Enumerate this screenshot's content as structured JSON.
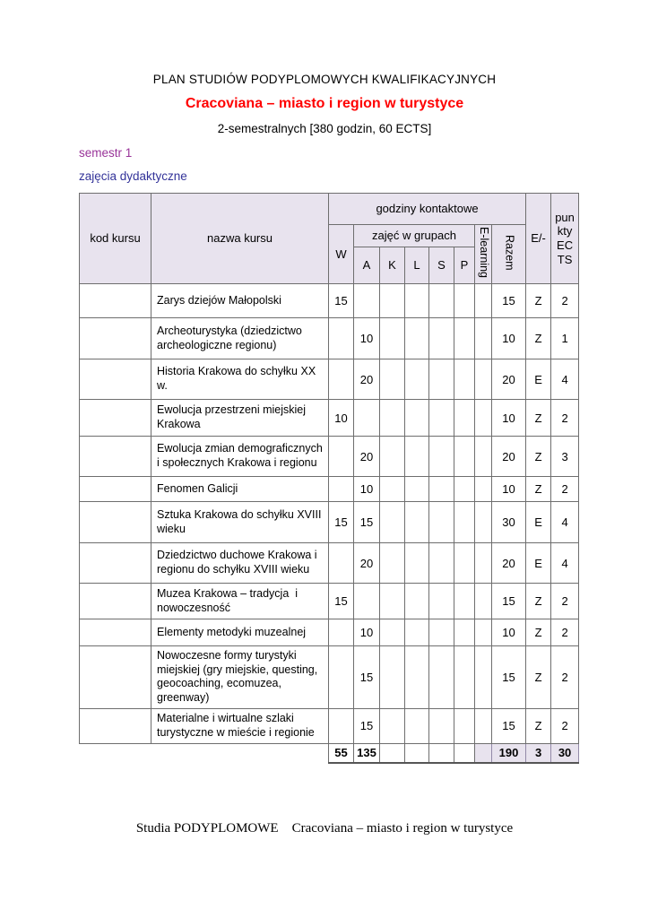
{
  "page": {
    "title_line1": "PLAN STUDIÓW PODYPLOMOWYCH KWALIFIKACYJNYCH",
    "title_line2": "Cracoviana – miasto i region w turystyce",
    "title_line3": "2-semestralnych [380 godzin, 60 ECTS]",
    "semester_label": "semestr 1",
    "section_label": "zajęcia dydaktyczne",
    "footer": "Studia PODYPLOMOWE    Cracoviana – miasto i region w turystyce"
  },
  "colors": {
    "title_red": "#ff0000",
    "semester_purple": "#993399",
    "section_blue": "#333399",
    "header_bg": "#e8e3ee",
    "border_gray": "#6e6e6e"
  },
  "table": {
    "headers": {
      "kod": "kod kursu",
      "nazwa": "nazwa kursu",
      "godziny": "godziny kontaktowe",
      "grupy": "zajęć w grupach",
      "w": "W",
      "a": "A",
      "k": "K",
      "l": "L",
      "s": "S",
      "p": "P",
      "elearning": "E-learning",
      "razem": "Razem",
      "ez": "E/-",
      "ects": "punkty ECTS"
    },
    "rows": [
      {
        "kod": "",
        "name": "Zarys dziejów Małopolski",
        "w": "15",
        "a": "",
        "k": "",
        "l": "",
        "s": "",
        "p": "",
        "el": "",
        "razem": "15",
        "ez": "Z",
        "ects": "2"
      },
      {
        "kod": "",
        "name": "Archeoturystyka (dziedzictwo archeologiczne regionu)",
        "w": "",
        "a": "10",
        "k": "",
        "l": "",
        "s": "",
        "p": "",
        "el": "",
        "razem": "10",
        "ez": "Z",
        "ects": "1"
      },
      {
        "kod": "",
        "name": "Historia Krakowa do schyłku XX w.",
        "w": "",
        "a": "20",
        "k": "",
        "l": "",
        "s": "",
        "p": "",
        "el": "",
        "razem": "20",
        "ez": "E",
        "ects": "4"
      },
      {
        "kod": "",
        "name": "Ewolucja przestrzeni miejskiej Krakowa",
        "w": "10",
        "a": "",
        "k": "",
        "l": "",
        "s": "",
        "p": "",
        "el": "",
        "razem": "10",
        "ez": "Z",
        "ects": "2"
      },
      {
        "kod": "",
        "name": "Ewolucja zmian demograficznych i społecznych Krakowa i regionu",
        "w": "",
        "a": "20",
        "k": "",
        "l": "",
        "s": "",
        "p": "",
        "el": "",
        "razem": "20",
        "ez": "Z",
        "ects": "3"
      },
      {
        "kod": "",
        "name": "Fenomen Galicji",
        "w": "",
        "a": "10",
        "k": "",
        "l": "",
        "s": "",
        "p": "",
        "el": "",
        "razem": "10",
        "ez": "Z",
        "ects": "2"
      },
      {
        "kod": "",
        "name": "Sztuka Krakowa do schyłku XVIII wieku",
        "w": "15",
        "a": "15",
        "k": "",
        "l": "",
        "s": "",
        "p": "",
        "el": "",
        "razem": "30",
        "ez": "E",
        "ects": "4"
      },
      {
        "kod": "",
        "name": "Dziedzictwo duchowe Krakowa i regionu do schyłku XVIII wieku",
        "w": "",
        "a": "20",
        "k": "",
        "l": "",
        "s": "",
        "p": "",
        "el": "",
        "razem": "20",
        "ez": "E",
        "ects": "4"
      },
      {
        "kod": "",
        "name": "Muzea Krakowa – tradycja  i nowoczesność",
        "w": "15",
        "a": "",
        "k": "",
        "l": "",
        "s": "",
        "p": "",
        "el": "",
        "razem": "15",
        "ez": "Z",
        "ects": "2"
      },
      {
        "kod": "",
        "name": "Elementy metodyki muzealnej",
        "w": "",
        "a": "10",
        "k": "",
        "l": "",
        "s": "",
        "p": "",
        "el": "",
        "razem": "10",
        "ez": "Z",
        "ects": "2"
      },
      {
        "kod": "",
        "name": "Nowoczesne formy turystyki miejskiej (gry miejskie, questing, geocoaching, ecomuzea, greenway)",
        "w": "",
        "a": "15",
        "k": "",
        "l": "",
        "s": "",
        "p": "",
        "el": "",
        "razem": "15",
        "ez": "Z",
        "ects": "2"
      },
      {
        "kod": "",
        "name": "Materialne i wirtualne szlaki turystyczne w mieście i regionie",
        "w": "",
        "a": "15",
        "k": "",
        "l": "",
        "s": "",
        "p": "",
        "el": "",
        "razem": "15",
        "ez": "Z",
        "ects": "2"
      }
    ],
    "totals": {
      "w": "55",
      "a": "135",
      "k": "",
      "l": "",
      "s": "",
      "p": "",
      "el": "",
      "razem": "190",
      "ez": "3",
      "ects": "30"
    }
  }
}
